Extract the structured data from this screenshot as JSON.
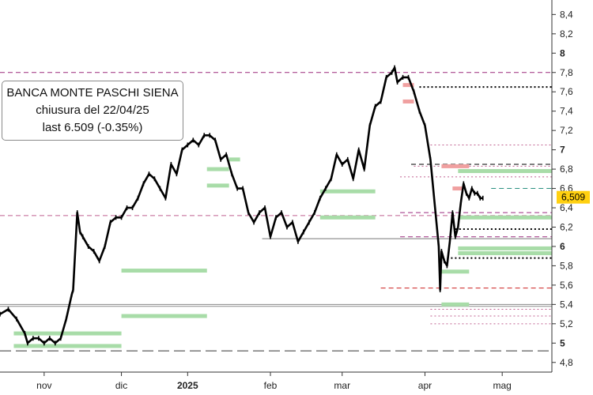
{
  "chart_data": {
    "type": "line",
    "title": "",
    "info_box": {
      "name": "BANCA MONTE PASCHI SIENA",
      "closing": "chiusura del 22/04/25",
      "last": "last 6.509 (-0.35%)"
    },
    "last_value_label": "6,509",
    "colors": {
      "price": "#000000",
      "support_zone": "#a8dca8",
      "resistance_zone": "#f0a0a0",
      "last_label_bg": "#ffd010",
      "grid_light": "#cccccc"
    },
    "y_axis": {
      "min": 4.7,
      "max": 8.55,
      "position": "right",
      "ticks": [
        {
          "value": 4.8,
          "label": "4,8"
        },
        {
          "value": 5.0,
          "label": "5"
        },
        {
          "value": 5.2,
          "label": "5,2"
        },
        {
          "value": 5.4,
          "label": "5,4"
        },
        {
          "value": 5.6,
          "label": "5,6"
        },
        {
          "value": 5.8,
          "label": "5,8"
        },
        {
          "value": 6.0,
          "label": "6"
        },
        {
          "value": 6.2,
          "label": "6,2"
        },
        {
          "value": 6.4,
          "label": "6,4"
        },
        {
          "value": 6.6,
          "label": "6,6"
        },
        {
          "value": 6.8,
          "label": "6,8"
        },
        {
          "value": 7.0,
          "label": "7"
        },
        {
          "value": 7.2,
          "label": "7,2"
        },
        {
          "value": 7.4,
          "label": "7,4"
        },
        {
          "value": 7.6,
          "label": "7,6"
        },
        {
          "value": 7.8,
          "label": "7,8"
        },
        {
          "value": 8.0,
          "label": "8"
        },
        {
          "value": 8.2,
          "label": "8,2"
        },
        {
          "value": 8.4,
          "label": "8,4"
        }
      ]
    },
    "x_axis": {
      "min": 0,
      "max": 200,
      "ticks": [
        {
          "value": 16,
          "label": "nov",
          "bold": false
        },
        {
          "value": 44,
          "label": "dic",
          "bold": false
        },
        {
          "value": 68,
          "label": "2025",
          "bold": true
        },
        {
          "value": 98,
          "label": "feb",
          "bold": false
        },
        {
          "value": 124,
          "label": "mar",
          "bold": false
        },
        {
          "value": 154,
          "label": "apr",
          "bold": false
        },
        {
          "value": 182,
          "label": "mag",
          "bold": false
        }
      ]
    },
    "series": [
      {
        "x": [
          0,
          3,
          6,
          9,
          10,
          12,
          14,
          16,
          18,
          20,
          22,
          24,
          26,
          26.5,
          28,
          29,
          30,
          32,
          34,
          36,
          38,
          40,
          42,
          44,
          46,
          48,
          50,
          52,
          54,
          56,
          58,
          60,
          62,
          64,
          66,
          68,
          70,
          72,
          74,
          76,
          78,
          80,
          82,
          84,
          86,
          88,
          90,
          92,
          94,
          96,
          98,
          100,
          102,
          104,
          106,
          108,
          110,
          112,
          114,
          116,
          118,
          120,
          122,
          124,
          126,
          128,
          130,
          132,
          134,
          136,
          138,
          140,
          142,
          143,
          144,
          146,
          148,
          150,
          152,
          154,
          156,
          158,
          159,
          159.5,
          160,
          161,
          162,
          163,
          164,
          165,
          166,
          167,
          168,
          169,
          170,
          171,
          172,
          173,
          174,
          175
        ],
        "y": [
          5.3,
          5.35,
          5.25,
          5.1,
          5.0,
          5.05,
          5.05,
          5.0,
          5.05,
          5.0,
          5.05,
          5.25,
          5.5,
          5.55,
          6.35,
          6.15,
          6.1,
          6.0,
          5.95,
          5.85,
          6.0,
          6.25,
          6.3,
          6.3,
          6.4,
          6.4,
          6.5,
          6.65,
          6.75,
          6.7,
          6.6,
          6.5,
          6.85,
          6.75,
          7.0,
          7.05,
          7.1,
          7.05,
          7.15,
          7.15,
          7.1,
          6.9,
          6.95,
          6.75,
          6.6,
          6.6,
          6.35,
          6.25,
          6.35,
          6.4,
          6.1,
          6.3,
          6.35,
          6.2,
          6.25,
          6.05,
          6.15,
          6.25,
          6.35,
          6.5,
          6.6,
          6.7,
          6.95,
          6.85,
          6.9,
          6.7,
          7.0,
          6.8,
          7.25,
          7.45,
          7.5,
          7.75,
          7.8,
          7.85,
          7.7,
          7.75,
          7.75,
          7.6,
          7.4,
          7.25,
          6.9,
          6.3,
          6.0,
          5.55,
          5.95,
          5.85,
          5.8,
          6.05,
          6.35,
          6.1,
          6.2,
          6.45,
          6.65,
          6.55,
          6.5,
          6.6,
          6.55,
          6.55,
          6.5,
          6.5
        ]
      }
    ],
    "horizontal_lines": [
      {
        "y": 7.8,
        "style": "dashed",
        "color": "#9b2a7f",
        "x_from": 0,
        "x_to": 200
      },
      {
        "y": 6.32,
        "style": "dashed",
        "color": "#c06090",
        "x_from": 0,
        "x_to": 200
      },
      {
        "y": 6.08,
        "style": "solid",
        "color": "#777777",
        "x_from": 95,
        "x_to": 200
      },
      {
        "y": 5.4,
        "style": "solid",
        "color": "#888888",
        "x_from": 0,
        "x_to": 200
      },
      {
        "y": 5.38,
        "style": "solid",
        "color": "#888888",
        "x_from": 0,
        "x_to": 200
      },
      {
        "y": 4.92,
        "style": "longdash",
        "color": "#333333",
        "x_from": 0,
        "x_to": 200
      },
      {
        "y": 7.65,
        "style": "dotted",
        "color": "#000000",
        "x_from": 152,
        "x_to": 200
      },
      {
        "y": 6.85,
        "style": "dashed",
        "color": "#000000",
        "x_from": 149,
        "x_to": 200
      },
      {
        "y": 6.83,
        "style": "dotted",
        "color": "#c06090",
        "x_from": 150,
        "x_to": 200
      },
      {
        "y": 6.72,
        "style": "dotted",
        "color": "#c06090",
        "x_from": 145,
        "x_to": 200
      },
      {
        "y": 6.6,
        "style": "dashed",
        "color": "#2a9080",
        "x_from": 178,
        "x_to": 200
      },
      {
        "y": 6.35,
        "style": "dashed",
        "color": "#9b2a7f",
        "x_from": 145,
        "x_to": 200
      },
      {
        "y": 6.18,
        "style": "dotted",
        "color": "#000000",
        "x_from": 165,
        "x_to": 200
      },
      {
        "y": 6.1,
        "style": "dashed",
        "color": "#9b2a7f",
        "x_from": 145,
        "x_to": 200
      },
      {
        "y": 5.88,
        "style": "dotted",
        "color": "#000000",
        "x_from": 162,
        "x_to": 200
      },
      {
        "y": 5.57,
        "style": "dashed",
        "color": "#cc2020",
        "x_from": 138,
        "x_to": 200
      },
      {
        "y": 5.35,
        "style": "dotted",
        "color": "#c06090",
        "x_from": 156,
        "x_to": 200
      },
      {
        "y": 5.28,
        "style": "dotted",
        "color": "#c06090",
        "x_from": 156,
        "x_to": 200
      },
      {
        "y": 5.2,
        "style": "dotted",
        "color": "#c06090",
        "x_from": 156,
        "x_to": 200
      },
      {
        "y": 7.05,
        "style": "dotted",
        "color": "#c06090",
        "x_from": 156,
        "x_to": 200
      }
    ],
    "zones": [
      {
        "x_from": 5,
        "x_to": 44,
        "y": 5.1,
        "kind": "support"
      },
      {
        "x_from": 5,
        "x_to": 44,
        "y": 4.97,
        "kind": "support"
      },
      {
        "x_from": 44,
        "x_to": 75,
        "y": 5.75,
        "kind": "support"
      },
      {
        "x_from": 44,
        "x_to": 75,
        "y": 5.28,
        "kind": "support"
      },
      {
        "x_from": 75,
        "x_to": 83,
        "y": 6.8,
        "kind": "support"
      },
      {
        "x_from": 75,
        "x_to": 83,
        "y": 6.63,
        "kind": "support"
      },
      {
        "x_from": 83,
        "x_to": 87,
        "y": 6.9,
        "kind": "support"
      },
      {
        "x_from": 116,
        "x_to": 136,
        "y": 6.57,
        "kind": "support"
      },
      {
        "x_from": 116,
        "x_to": 136,
        "y": 6.3,
        "kind": "support"
      },
      {
        "x_from": 146,
        "x_to": 150,
        "y": 7.67,
        "kind": "resistance"
      },
      {
        "x_from": 146,
        "x_to": 150,
        "y": 7.5,
        "kind": "resistance"
      },
      {
        "x_from": 164,
        "x_to": 168,
        "y": 6.6,
        "kind": "resistance"
      },
      {
        "x_from": 160,
        "x_to": 170,
        "y": 6.83,
        "kind": "resistance"
      },
      {
        "x_from": 160,
        "x_to": 170,
        "y": 5.74,
        "kind": "support"
      },
      {
        "x_from": 160,
        "x_to": 170,
        "y": 5.4,
        "kind": "support"
      },
      {
        "x_from": 166,
        "x_to": 200,
        "y": 6.78,
        "kind": "support"
      },
      {
        "x_from": 166,
        "x_to": 200,
        "y": 6.3,
        "kind": "support"
      },
      {
        "x_from": 166,
        "x_to": 200,
        "y": 5.98,
        "kind": "support"
      },
      {
        "x_from": 166,
        "x_to": 200,
        "y": 5.93,
        "kind": "support"
      }
    ],
    "last_value": 6.509
  }
}
